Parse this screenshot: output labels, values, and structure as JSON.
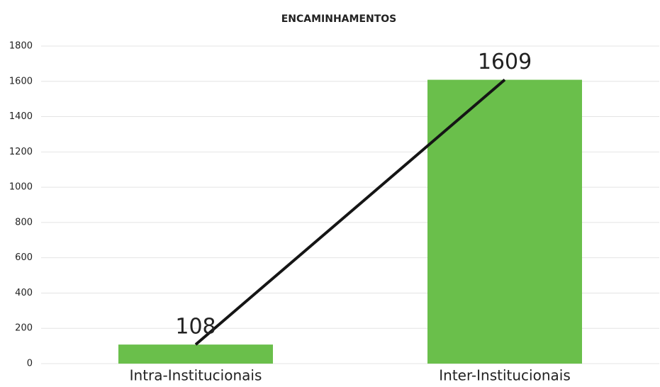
{
  "chart_data": {
    "type": "bar",
    "title": "ENCAMINHAMENTOS",
    "categories": [
      "Intra-Institucionais",
      "Inter-Institucionais"
    ],
    "values": [
      108,
      1609
    ],
    "color": "#6abf4b",
    "trend_line": true,
    "line_color": "#151515",
    "ylim": [
      0,
      1800
    ],
    "yticks": [
      0,
      200,
      400,
      600,
      800,
      1000,
      1200,
      1400,
      1600,
      1800
    ],
    "grid": true
  }
}
